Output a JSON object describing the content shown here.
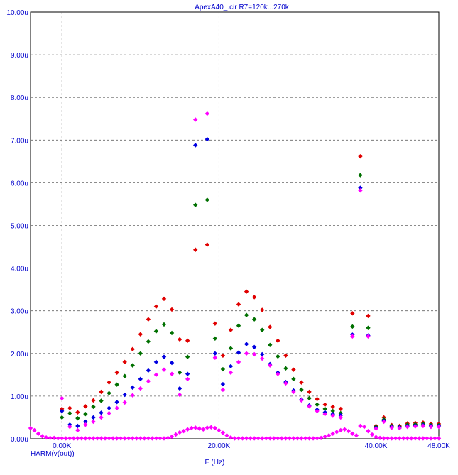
{
  "chart_data": {
    "type": "scatter",
    "title": "ApexA40_.cir R7=120k...270k",
    "xlabel": "F (Hz)",
    "ylabel": "HARM(v(out))",
    "xlim": [
      -4000,
      48000
    ],
    "ylim": [
      0,
      10
    ],
    "y_unit": "u",
    "grid": true,
    "x_ticks": [
      {
        "value": 0,
        "label": "0.00K"
      },
      {
        "value": 20000,
        "label": "20.00K"
      },
      {
        "value": 40000,
        "label": "40.00K"
      },
      {
        "value": 48000,
        "label": "48.00K"
      }
    ],
    "y_ticks": [
      {
        "value": 0,
        "label": "0.00u"
      },
      {
        "value": 1,
        "label": "1.00u"
      },
      {
        "value": 2,
        "label": "2.00u"
      },
      {
        "value": 3,
        "label": "3.00u"
      },
      {
        "value": 4,
        "label": "4.00u"
      },
      {
        "value": 5,
        "label": "5.00u"
      },
      {
        "value": 6,
        "label": "6.00u"
      },
      {
        "value": 7,
        "label": "7.00u"
      },
      {
        "value": 8,
        "label": "8.00u"
      },
      {
        "value": 9,
        "label": "9.00u"
      },
      {
        "value": 10,
        "label": "10.00u"
      }
    ],
    "series": [
      {
        "color": "#e00000",
        "points": [
          [
            0,
            0.7
          ],
          [
            1000,
            0.72
          ],
          [
            2000,
            0.62
          ],
          [
            3000,
            0.76
          ],
          [
            4000,
            0.9
          ],
          [
            5000,
            1.1
          ],
          [
            6000,
            1.32
          ],
          [
            7000,
            1.55
          ],
          [
            8000,
            1.8
          ],
          [
            9000,
            2.1
          ],
          [
            10000,
            2.45
          ],
          [
            11000,
            2.8
          ],
          [
            12000,
            3.1
          ],
          [
            13000,
            3.28
          ],
          [
            14000,
            3.03
          ],
          [
            15000,
            2.33
          ],
          [
            16000,
            2.3
          ],
          [
            17000,
            4.43
          ],
          [
            18500,
            4.55
          ],
          [
            19500,
            2.7
          ],
          [
            20500,
            1.95
          ],
          [
            21500,
            2.55
          ],
          [
            22500,
            3.15
          ],
          [
            23500,
            3.45
          ],
          [
            24500,
            3.32
          ],
          [
            25500,
            3.02
          ],
          [
            26500,
            2.62
          ],
          [
            27500,
            2.3
          ],
          [
            28500,
            1.95
          ],
          [
            29500,
            1.62
          ],
          [
            30500,
            1.32
          ],
          [
            31500,
            1.1
          ],
          [
            32500,
            0.93
          ],
          [
            33500,
            0.8
          ],
          [
            34500,
            0.75
          ],
          [
            35500,
            0.7
          ],
          [
            37000,
            2.94
          ],
          [
            38000,
            6.62
          ],
          [
            39000,
            2.88
          ],
          [
            40000,
            0.3
          ],
          [
            41000,
            0.5
          ],
          [
            42000,
            0.32
          ],
          [
            43000,
            0.3
          ],
          [
            44000,
            0.36
          ],
          [
            45000,
            0.37
          ],
          [
            46000,
            0.38
          ],
          [
            47000,
            0.35
          ],
          [
            48000,
            0.35
          ]
        ]
      },
      {
        "color": "#007000",
        "points": [
          [
            0,
            0.5
          ],
          [
            1000,
            0.6
          ],
          [
            2000,
            0.48
          ],
          [
            3000,
            0.58
          ],
          [
            4000,
            0.75
          ],
          [
            5000,
            0.89
          ],
          [
            6000,
            1.07
          ],
          [
            7000,
            1.27
          ],
          [
            8000,
            1.47
          ],
          [
            9000,
            1.72
          ],
          [
            10000,
            2.0
          ],
          [
            11000,
            2.28
          ],
          [
            12000,
            2.52
          ],
          [
            13000,
            2.68
          ],
          [
            14000,
            2.48
          ],
          [
            15000,
            1.55
          ],
          [
            16000,
            1.92
          ],
          [
            17000,
            5.48
          ],
          [
            18500,
            5.6
          ],
          [
            19500,
            2.35
          ],
          [
            20500,
            1.63
          ],
          [
            21500,
            2.12
          ],
          [
            22500,
            2.65
          ],
          [
            23500,
            2.9
          ],
          [
            24500,
            2.8
          ],
          [
            25500,
            2.55
          ],
          [
            26500,
            2.2
          ],
          [
            27500,
            1.93
          ],
          [
            28500,
            1.65
          ],
          [
            29500,
            1.4
          ],
          [
            30500,
            1.15
          ],
          [
            31500,
            0.95
          ],
          [
            32500,
            0.8
          ],
          [
            33500,
            0.7
          ],
          [
            34500,
            0.65
          ],
          [
            35500,
            0.6
          ],
          [
            37000,
            2.63
          ],
          [
            38000,
            6.18
          ],
          [
            39000,
            2.6
          ],
          [
            40000,
            0.28
          ],
          [
            41000,
            0.45
          ],
          [
            42000,
            0.3
          ],
          [
            43000,
            0.28
          ],
          [
            44000,
            0.33
          ],
          [
            45000,
            0.34
          ],
          [
            46000,
            0.35
          ],
          [
            47000,
            0.32
          ],
          [
            48000,
            0.32
          ]
        ]
      },
      {
        "color": "#0000e0",
        "points": [
          [
            0,
            0.65
          ],
          [
            1000,
            0.33
          ],
          [
            2000,
            0.3
          ],
          [
            3000,
            0.4
          ],
          [
            4000,
            0.5
          ],
          [
            5000,
            0.61
          ],
          [
            6000,
            0.72
          ],
          [
            7000,
            0.86
          ],
          [
            8000,
            1.03
          ],
          [
            9000,
            1.2
          ],
          [
            10000,
            1.4
          ],
          [
            11000,
            1.6
          ],
          [
            12000,
            1.8
          ],
          [
            13000,
            1.92
          ],
          [
            14000,
            1.78
          ],
          [
            15000,
            1.18
          ],
          [
            16000,
            1.52
          ],
          [
            17000,
            6.88
          ],
          [
            18500,
            7.02
          ],
          [
            19500,
            2.0
          ],
          [
            20500,
            1.28
          ],
          [
            21500,
            1.7
          ],
          [
            22500,
            2.02
          ],
          [
            23500,
            2.22
          ],
          [
            24500,
            2.15
          ],
          [
            25500,
            1.98
          ],
          [
            26500,
            1.75
          ],
          [
            27500,
            1.55
          ],
          [
            28500,
            1.33
          ],
          [
            29500,
            1.13
          ],
          [
            30500,
            0.92
          ],
          [
            31500,
            0.78
          ],
          [
            32500,
            0.68
          ],
          [
            33500,
            0.62
          ],
          [
            34500,
            0.58
          ],
          [
            35500,
            0.55
          ],
          [
            37000,
            2.44
          ],
          [
            38000,
            5.88
          ],
          [
            39000,
            2.42
          ],
          [
            40000,
            0.26
          ],
          [
            41000,
            0.42
          ],
          [
            42000,
            0.28
          ],
          [
            43000,
            0.27
          ],
          [
            44000,
            0.3
          ],
          [
            45000,
            0.31
          ],
          [
            46000,
            0.32
          ],
          [
            47000,
            0.3
          ],
          [
            48000,
            0.3
          ]
        ]
      },
      {
        "color": "#ff00ff",
        "points": [
          [
            0,
            0.95
          ],
          [
            1000,
            0.28
          ],
          [
            2000,
            0.2
          ],
          [
            3000,
            0.33
          ],
          [
            4000,
            0.4
          ],
          [
            5000,
            0.5
          ],
          [
            6000,
            0.6
          ],
          [
            7000,
            0.72
          ],
          [
            8000,
            0.85
          ],
          [
            9000,
            1.02
          ],
          [
            10000,
            1.18
          ],
          [
            11000,
            1.35
          ],
          [
            12000,
            1.5
          ],
          [
            13000,
            1.62
          ],
          [
            14000,
            1.52
          ],
          [
            15000,
            1.03
          ],
          [
            16000,
            1.4
          ],
          [
            17000,
            7.48
          ],
          [
            18500,
            7.62
          ],
          [
            19500,
            1.9
          ],
          [
            20500,
            1.15
          ],
          [
            21500,
            1.55
          ],
          [
            22500,
            1.8
          ],
          [
            23500,
            2.0
          ],
          [
            24500,
            1.98
          ],
          [
            25500,
            1.88
          ],
          [
            26500,
            1.72
          ],
          [
            27500,
            1.52
          ],
          [
            28500,
            1.3
          ],
          [
            29500,
            1.1
          ],
          [
            30500,
            0.9
          ],
          [
            31500,
            0.76
          ],
          [
            32500,
            0.65
          ],
          [
            33500,
            0.58
          ],
          [
            34500,
            0.54
          ],
          [
            35500,
            0.5
          ],
          [
            37000,
            2.4
          ],
          [
            38000,
            5.82
          ],
          [
            39000,
            2.4
          ],
          [
            40000,
            0.24
          ],
          [
            41000,
            0.4
          ],
          [
            42000,
            0.26
          ],
          [
            43000,
            0.25
          ],
          [
            44000,
            0.28
          ],
          [
            45000,
            0.29
          ],
          [
            46000,
            0.3
          ],
          [
            47000,
            0.28
          ],
          [
            48000,
            0.28
          ]
        ]
      },
      {
        "color": "#ff00ff",
        "points": [
          [
            -4000,
            0.25
          ],
          [
            -3500,
            0.2
          ],
          [
            -3000,
            0.12
          ],
          [
            -2500,
            0.06
          ],
          [
            -2000,
            0.03
          ],
          [
            -1500,
            0.02
          ],
          [
            -1000,
            0.02
          ],
          [
            -500,
            0.01
          ],
          [
            0,
            0.01
          ],
          [
            500,
            0.01
          ],
          [
            1000,
            0.01
          ],
          [
            1500,
            0.01
          ],
          [
            2000,
            0.01
          ],
          [
            2500,
            0.01
          ],
          [
            3000,
            0.01
          ],
          [
            3500,
            0.01
          ],
          [
            4000,
            0.01
          ],
          [
            4500,
            0.01
          ],
          [
            5000,
            0.01
          ],
          [
            5500,
            0.01
          ],
          [
            6000,
            0.01
          ],
          [
            6500,
            0.01
          ],
          [
            7000,
            0.01
          ],
          [
            7500,
            0.01
          ],
          [
            8000,
            0.01
          ],
          [
            8500,
            0.01
          ],
          [
            9000,
            0.01
          ],
          [
            9500,
            0.01
          ],
          [
            10000,
            0.01
          ],
          [
            10500,
            0.01
          ],
          [
            11000,
            0.01
          ],
          [
            11500,
            0.01
          ],
          [
            12000,
            0.01
          ],
          [
            12500,
            0.01
          ],
          [
            13000,
            0.01
          ],
          [
            13500,
            0.02
          ],
          [
            14000,
            0.05
          ],
          [
            14500,
            0.1
          ],
          [
            15000,
            0.15
          ],
          [
            15500,
            0.18
          ],
          [
            16000,
            0.22
          ],
          [
            16500,
            0.25
          ],
          [
            17000,
            0.26
          ],
          [
            17500,
            0.24
          ],
          [
            18000,
            0.22
          ],
          [
            18500,
            0.26
          ],
          [
            19000,
            0.27
          ],
          [
            19500,
            0.25
          ],
          [
            20000,
            0.2
          ],
          [
            20500,
            0.14
          ],
          [
            21000,
            0.08
          ],
          [
            21500,
            0.03
          ],
          [
            22000,
            0.01
          ],
          [
            22500,
            0.01
          ],
          [
            23000,
            0.01
          ],
          [
            23500,
            0.01
          ],
          [
            24000,
            0.01
          ],
          [
            24500,
            0.01
          ],
          [
            25000,
            0.01
          ],
          [
            25500,
            0.01
          ],
          [
            26000,
            0.01
          ],
          [
            26500,
            0.01
          ],
          [
            27000,
            0.01
          ],
          [
            27500,
            0.01
          ],
          [
            28000,
            0.01
          ],
          [
            28500,
            0.01
          ],
          [
            29000,
            0.01
          ],
          [
            29500,
            0.01
          ],
          [
            30000,
            0.01
          ],
          [
            30500,
            0.01
          ],
          [
            31000,
            0.01
          ],
          [
            31500,
            0.01
          ],
          [
            32000,
            0.01
          ],
          [
            32500,
            0.01
          ],
          [
            33000,
            0.02
          ],
          [
            33500,
            0.05
          ],
          [
            34000,
            0.08
          ],
          [
            34500,
            0.12
          ],
          [
            35000,
            0.16
          ],
          [
            35500,
            0.2
          ],
          [
            36000,
            0.22
          ],
          [
            36500,
            0.18
          ],
          [
            37000,
            0.12
          ],
          [
            37500,
            0.08
          ],
          [
            38000,
            0.3
          ],
          [
            38500,
            0.28
          ],
          [
            39000,
            0.18
          ],
          [
            39500,
            0.1
          ],
          [
            40000,
            0.04
          ],
          [
            40500,
            0.02
          ],
          [
            41000,
            0.01
          ],
          [
            41500,
            0.01
          ],
          [
            42000,
            0.01
          ],
          [
            42500,
            0.01
          ],
          [
            43000,
            0.01
          ],
          [
            43500,
            0.01
          ],
          [
            44000,
            0.01
          ],
          [
            44500,
            0.01
          ],
          [
            45000,
            0.01
          ],
          [
            45500,
            0.01
          ],
          [
            46000,
            0.01
          ],
          [
            46500,
            0.01
          ],
          [
            47000,
            0.01
          ],
          [
            47500,
            0.01
          ],
          [
            48000,
            0.01
          ]
        ]
      }
    ]
  }
}
